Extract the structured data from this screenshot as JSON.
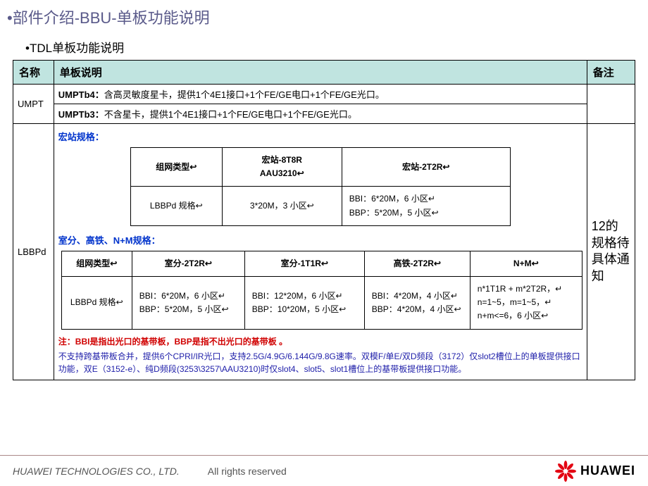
{
  "title": "•部件介绍-BBU-单板功能说明",
  "subtitle": "•TDL单板功能说明",
  "colors": {
    "header_bg": "#c0e4e0",
    "border": "#000000",
    "link_blue": "#0033cc",
    "note_red": "#d00000",
    "body_blue": "#2020aa",
    "title_purple": "#5a5a8a"
  },
  "main_table": {
    "headers": [
      "名称",
      "单板说明",
      "备注"
    ],
    "rows": {
      "umpt": {
        "name": "UMPT",
        "desc1_label": "UMPTb4：",
        "desc1_text": "含高灵敏度星卡，提供1个4E1接口+1个FE/GE电口+1个FE/GE光口。",
        "desc2_label": "UMPTb3：",
        "desc2_text": "不含星卡，提供1个4E1接口+1个FE/GE电口+1个FE/GE光口。",
        "remark": ""
      },
      "lbbp": {
        "name": "LBBPd",
        "macro_label": "宏站规格：",
        "macro_table": {
          "headers": [
            "组网类型",
            "宏站-8T8R\nAAU3210",
            "宏站-2T2R"
          ],
          "row_label": "LBBPd 规格",
          "cells": [
            "3*20M，3 小区",
            "BBI：6*20M，6 小区\nBBP：5*20M，5 小区"
          ]
        },
        "indoor_label": "室分、高铁、N+M规格：",
        "indoor_table": {
          "headers": [
            "组网类型",
            "室分-2T2R",
            "室分-1T1R",
            "高铁-2T2R",
            "N+M"
          ],
          "row_label": "LBBPd 规格",
          "cells": [
            "BBI：6*20M，6 小区\nBBP：5*20M，5 小区",
            "BBI：12*20M，6 小区\nBBP：10*20M，5 小区",
            "BBI：4*20M，4 小区\nBBP：4*20M，4 小区",
            "n*1T1R + m*2T2R，\nn=1~5，m=1~5，\nn+m<=6，6 小区"
          ]
        },
        "note_red": "注：BBI是指出光口的基带板，BBP是指不出光口的基带板 。",
        "note_blue": "不支持跨基带板合并，提供6个CPRI/IR光口，支持2.5G/4.9G/6.144G/9.8G速率。双模F/单E/双D频段（3172）仅slot2槽位上的单板提供接口功能，双E（3152-e）、纯D频段(3253\\3257\\AAU3210)时仅slot4、slot5、slot1槽位上的基带板提供接口功能。",
        "remark": "12的规格待具体通知"
      }
    }
  },
  "footer": {
    "company": "HUAWEI TECHNOLOGIES CO., LTD.",
    "rights": "All rights reserved",
    "logo_text": "HUAWEI",
    "logo_color": "#e30613"
  }
}
